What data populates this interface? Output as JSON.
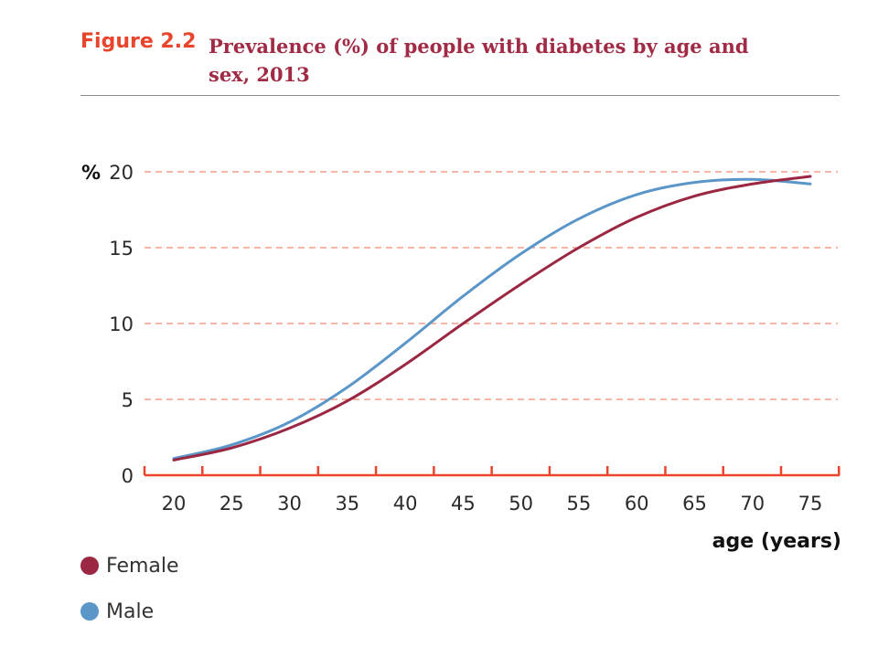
{
  "figure": {
    "label": "Figure 2.2",
    "title": "Prevalence (%) of people with diabetes by age and sex, 2013"
  },
  "colors": {
    "female": "#9b2742",
    "male": "#5b96c8",
    "axis": "#e8452c",
    "grid": "#f08a70"
  },
  "chart_data": {
    "type": "line",
    "title": "Prevalence (%) of people with diabetes by age and sex, 2013",
    "xlabel": "age (years)",
    "ylabel": "%",
    "xlim": [
      20,
      75
    ],
    "ylim": [
      0,
      20
    ],
    "x_ticks": [
      20,
      25,
      30,
      35,
      40,
      45,
      50,
      55,
      60,
      65,
      70,
      75
    ],
    "y_ticks": [
      0,
      5,
      10,
      15,
      20
    ],
    "grid": "horizontal dashed",
    "legend_position": "bottom-left",
    "series": [
      {
        "name": "Female",
        "x": [
          20,
          25,
          30,
          35,
          40,
          45,
          50,
          55,
          60,
          65,
          70,
          75
        ],
        "values": [
          1.0,
          1.8,
          3.1,
          4.9,
          7.3,
          10.0,
          12.6,
          15.0,
          17.0,
          18.4,
          19.2,
          19.7
        ]
      },
      {
        "name": "Male",
        "x": [
          20,
          25,
          30,
          35,
          40,
          45,
          50,
          55,
          60,
          65,
          70,
          75
        ],
        "values": [
          1.1,
          2.0,
          3.5,
          5.8,
          8.7,
          11.8,
          14.6,
          16.9,
          18.5,
          19.3,
          19.5,
          19.2
        ]
      }
    ]
  }
}
